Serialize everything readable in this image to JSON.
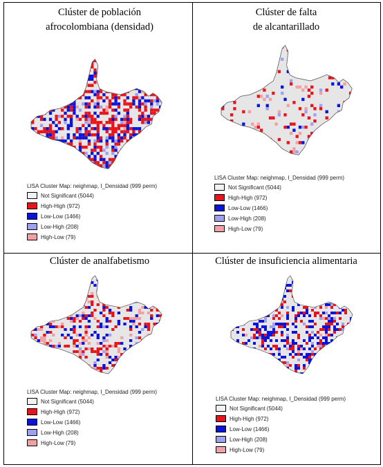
{
  "panels": [
    {
      "title_lines": [
        "Clúster de población",
        "afrocolombiana (densidad)"
      ]
    },
    {
      "title_lines": [
        "Clúster de falta",
        "de alcantarillado"
      ]
    },
    {
      "title_lines": [
        "Clúster de analfabetismo"
      ]
    },
    {
      "title_lines": [
        "Clúster de insuficiencia alimentaria"
      ]
    }
  ],
  "legend": {
    "title": "LISA Cluster Map: neighmap, I_Densidad (999 perm)",
    "items": [
      {
        "label": "Not Significant (5044)",
        "color": "#f2f2f2"
      },
      {
        "label": "High-High (972)",
        "color": "#e8141c"
      },
      {
        "label": "Low-Low (1466)",
        "color": "#0a14d8"
      },
      {
        "label": "Low-High (208)",
        "color": "#9fa0ee"
      },
      {
        "label": "High-Low (79)",
        "color": "#f2a0a4"
      }
    ]
  },
  "colors": {
    "border": "#555555",
    "not_significant": "#e6e6e6"
  }
}
